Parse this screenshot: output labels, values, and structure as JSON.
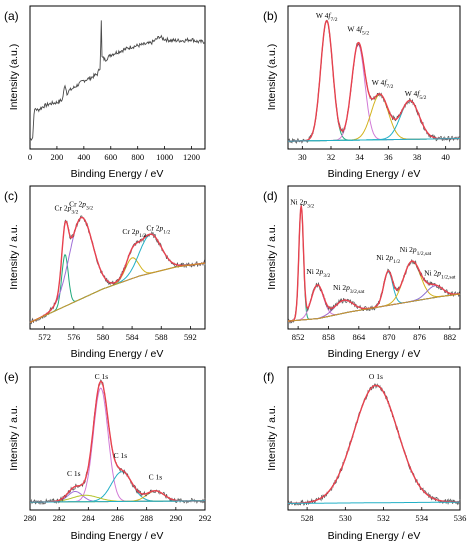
{
  "chart_data": [
    {
      "panel": "(a)",
      "type": "line",
      "xlabel": "Binding Energy / eV",
      "ylabel": "Intensity (a.u.)",
      "xticks": [
        "0",
        "200",
        "400",
        "600",
        "800",
        "1000",
        "1200"
      ],
      "xlim": [
        0,
        1300
      ],
      "colors": {
        "raw": "#4a4a4a"
      },
      "series": [
        {
          "x": [
            0,
            20,
            30,
            40,
            60,
            100,
            150,
            200,
            240,
            260,
            275,
            290,
            320,
            360,
            400,
            450,
            500,
            520,
            528,
            531,
            535,
            560,
            600,
            650,
            700,
            750,
            800,
            850,
            900,
            940,
            960,
            980,
            1000,
            1050,
            1100,
            1150,
            1200,
            1250,
            1300
          ],
          "values": [
            0.04,
            0.06,
            0.25,
            0.28,
            0.27,
            0.3,
            0.32,
            0.33,
            0.35,
            0.47,
            0.4,
            0.42,
            0.44,
            0.47,
            0.5,
            0.52,
            0.55,
            0.6,
            0.88,
            1.0,
            0.68,
            0.66,
            0.7,
            0.72,
            0.74,
            0.76,
            0.77,
            0.78,
            0.79,
            0.82,
            0.84,
            0.83,
            0.82,
            0.81,
            0.81,
            0.81,
            0.82,
            0.8,
            0.8
          ]
        }
      ]
    },
    {
      "panel": "(b)",
      "type": "line",
      "xlabel": "Binding Energy / eV",
      "ylabel": "Intensity (a.u.)",
      "xticks": [
        "30",
        "32",
        "34",
        "36",
        "38",
        "40"
      ],
      "xlim": [
        29,
        41
      ],
      "annotations": [
        {
          "text": "W 4f7/2",
          "x": 31.7
        },
        {
          "text": "W 4f5/2",
          "x": 33.9
        },
        {
          "text": "W 4f7/2",
          "x": 35.6
        },
        {
          "text": "W 4f5/2",
          "x": 37.9
        }
      ],
      "baseline": {
        "x": [
          29,
          41
        ],
        "values": [
          0.03,
          0.05
        ]
      },
      "peaks": [
        {
          "center": 31.7,
          "height": 0.93,
          "width": 0.42,
          "color": "#1fa97b"
        },
        {
          "center": 33.9,
          "height": 0.74,
          "width": 0.46,
          "color": "#d17ad6"
        },
        {
          "center": 35.4,
          "height": 0.35,
          "width": 0.6,
          "color": "#d3b31e"
        },
        {
          "center": 37.5,
          "height": 0.3,
          "width": 0.65,
          "color": "#23b0c6"
        }
      ],
      "colors": {
        "raw": "#555555",
        "envelope": "#e8414e",
        "baseline": "#23b0c6"
      }
    },
    {
      "panel": "(c)",
      "type": "line",
      "xlabel": "Binding Energy / eV",
      "ylabel": "Intensity / a.u.",
      "xticks": [
        "572",
        "576",
        "580",
        "584",
        "588",
        "592"
      ],
      "xlim": [
        570,
        594
      ],
      "annotations": [
        {
          "text": "Cr 2p3/2",
          "x": 575.0
        },
        {
          "text": "Cr 2p3/2",
          "x": 577.0
        },
        {
          "text": "Cr 2p1/2",
          "x": 584.3
        },
        {
          "text": "Cr 2p1/2",
          "x": 587.6
        }
      ],
      "baseline": {
        "x": [
          570,
          575,
          580,
          585,
          590,
          594
        ],
        "values": [
          0.02,
          0.15,
          0.28,
          0.38,
          0.45,
          0.48
        ]
      },
      "peaks": [
        {
          "center": 574.8,
          "height": 0.4,
          "width": 0.45,
          "color": "#1fa97b"
        },
        {
          "center": 577.0,
          "height": 0.63,
          "width": 1.6,
          "color": "#a070d8"
        },
        {
          "center": 584.0,
          "height": 0.16,
          "width": 0.9,
          "color": "#d3b31e"
        },
        {
          "center": 586.5,
          "height": 0.3,
          "width": 1.5,
          "color": "#23b0c6"
        }
      ],
      "colors": {
        "raw": "#555555",
        "envelope": "#e8414e",
        "baseline": "#c8962a"
      }
    },
    {
      "panel": "(d)",
      "type": "line",
      "xlabel": "Binding Energy / eV",
      "ylabel": "Intensity / a.u.",
      "xticks": [
        "852",
        "858",
        "864",
        "870",
        "876",
        "882"
      ],
      "xlim": [
        850,
        884
      ],
      "annotations": [
        {
          "text": "Ni 2p3/2",
          "x": 852.8
        },
        {
          "text": "Ni 2p3/2",
          "x": 856.0
        },
        {
          "text": "Ni 2p3/2,sat",
          "x": 862.0
        },
        {
          "text": "Ni 2p1/2",
          "x": 869.8
        },
        {
          "text": "Ni 2p1/2,sat",
          "x": 875.2
        },
        {
          "text": "Ni 2p1/2,sat",
          "x": 880.0
        }
      ],
      "baseline": {
        "x": [
          850,
          856,
          862,
          868,
          874,
          880,
          884
        ],
        "values": [
          0.03,
          0.05,
          0.1,
          0.14,
          0.18,
          0.22,
          0.24
        ]
      },
      "peaks": [
        {
          "center": 852.6,
          "height": 0.88,
          "width": 0.45,
          "color": "#1fa97b"
        },
        {
          "center": 855.8,
          "height": 0.26,
          "width": 1.2,
          "color": "#d17ad6"
        },
        {
          "center": 861.0,
          "height": 0.1,
          "width": 1.8,
          "color": "#a060c8"
        },
        {
          "center": 869.8,
          "height": 0.26,
          "width": 0.9,
          "color": "#23b0c6"
        },
        {
          "center": 874.5,
          "height": 0.31,
          "width": 1.7,
          "color": "#d3b31e"
        },
        {
          "center": 879.0,
          "height": 0.09,
          "width": 1.6,
          "color": "#8a6fd0"
        }
      ],
      "colors": {
        "raw": "#555555",
        "envelope": "#e8414e",
        "baseline": "#c8962a"
      }
    },
    {
      "panel": "(e)",
      "type": "line",
      "xlabel": "Binding Energy / eV",
      "ylabel": "Intensity / a.u.",
      "xticks": [
        "280",
        "282",
        "284",
        "286",
        "288",
        "290",
        "292"
      ],
      "xlim": [
        280,
        292
      ],
      "annotations": [
        {
          "text": "C 1s",
          "x": 283.0
        },
        {
          "text": "C 1s",
          "x": 284.9
        },
        {
          "text": "C 1s",
          "x": 286.2
        },
        {
          "text": "C 1s",
          "x": 288.6
        }
      ],
      "baseline": {
        "x": [
          280,
          292
        ],
        "values": [
          0.03,
          0.04
        ]
      },
      "peaks": [
        {
          "center": 283.1,
          "height": 0.08,
          "width": 0.5,
          "color": "#a070d8"
        },
        {
          "center": 284.85,
          "height": 0.88,
          "width": 0.5,
          "color": "#d17ad6"
        },
        {
          "center": 286.3,
          "height": 0.23,
          "width": 0.7,
          "color": "#23b0c6"
        },
        {
          "center": 288.6,
          "height": 0.08,
          "width": 0.6,
          "color": "#d3b31e"
        },
        {
          "center": 283.8,
          "height": 0.05,
          "width": 0.9,
          "color": "#b4c22a"
        }
      ],
      "colors": {
        "raw": "#555555",
        "envelope": "#e8414e",
        "baseline": "#23b0c6"
      }
    },
    {
      "panel": "(f)",
      "type": "line",
      "xlabel": "Binding Energy / eV",
      "ylabel": "Intensity / a.u.",
      "xticks": [
        "528",
        "530",
        "532",
        "534",
        "536"
      ],
      "xlim": [
        527,
        536
      ],
      "annotations": [
        {
          "text": "O 1s",
          "x": 531.6
        }
      ],
      "baseline": {
        "x": [
          527,
          536
        ],
        "values": [
          0.02,
          0.03
        ]
      },
      "peaks": [
        {
          "center": 531.6,
          "height": 0.91,
          "width": 1.15,
          "color": "#1fa97b"
        }
      ],
      "colors": {
        "raw": "#555555",
        "envelope": "#e8414e",
        "baseline": "#23b0c6"
      }
    }
  ]
}
